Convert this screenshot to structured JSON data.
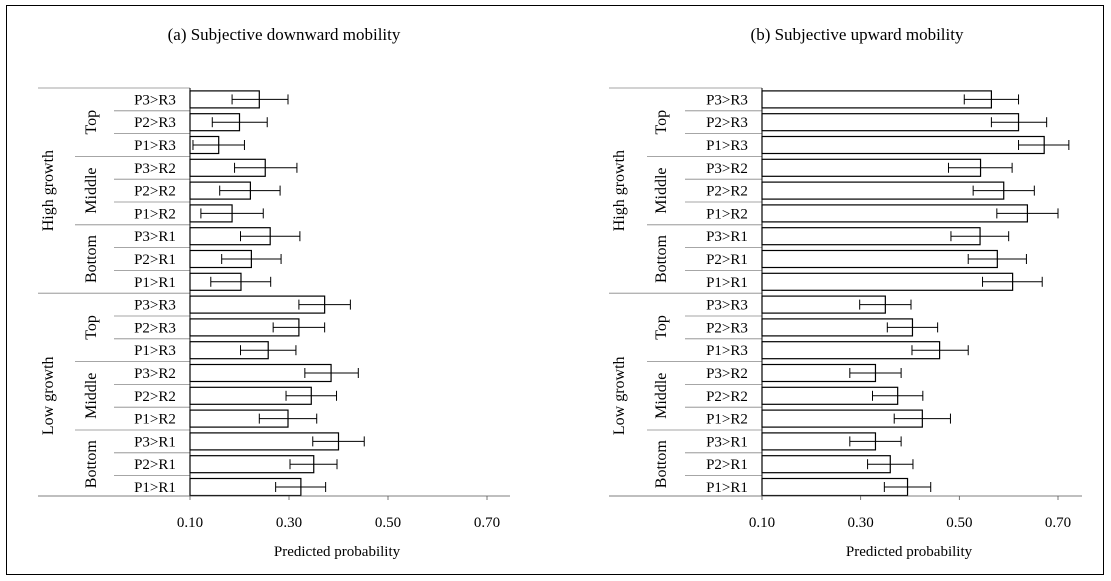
{
  "chart_data": [
    {
      "type": "bar",
      "orientation": "horizontal",
      "title": "(a) Subjective downward mobility",
      "xlabel": "Predicted probability",
      "xlim": [
        0.1,
        0.7
      ],
      "xticks": [
        "0.10",
        "0.30",
        "0.50",
        "0.70"
      ],
      "groups": [
        {
          "name": "High growth",
          "subgroups": [
            {
              "name": "Top",
              "bars": [
                {
                  "label": "P3>R3",
                  "value": 0.24,
                  "error_low": 0.185,
                  "error_high": 0.298
                },
                {
                  "label": "P2>R3",
                  "value": 0.2,
                  "error_low": 0.145,
                  "error_high": 0.256
                },
                {
                  "label": "P1>R3",
                  "value": 0.158,
                  "error_low": 0.106,
                  "error_high": 0.21
                }
              ]
            },
            {
              "name": "Middle",
              "bars": [
                {
                  "label": "P3>R2",
                  "value": 0.252,
                  "error_low": 0.19,
                  "error_high": 0.316
                },
                {
                  "label": "P2>R2",
                  "value": 0.222,
                  "error_low": 0.16,
                  "error_high": 0.282
                },
                {
                  "label": "P1>R2",
                  "value": 0.185,
                  "error_low": 0.122,
                  "error_high": 0.248
                }
              ]
            },
            {
              "name": "Bottom",
              "bars": [
                {
                  "label": "P3>R1",
                  "value": 0.262,
                  "error_low": 0.202,
                  "error_high": 0.322
                },
                {
                  "label": "P2>R1",
                  "value": 0.224,
                  "error_low": 0.164,
                  "error_high": 0.284
                },
                {
                  "label": "P1>R1",
                  "value": 0.203,
                  "error_low": 0.142,
                  "error_high": 0.263
                }
              ]
            }
          ]
        },
        {
          "name": "Low growth",
          "subgroups": [
            {
              "name": "Top",
              "bars": [
                {
                  "label": "P3>R3",
                  "value": 0.372,
                  "error_low": 0.32,
                  "error_high": 0.424
                },
                {
                  "label": "P2>R3",
                  "value": 0.32,
                  "error_low": 0.268,
                  "error_high": 0.372
                },
                {
                  "label": "P1>R3",
                  "value": 0.258,
                  "error_low": 0.202,
                  "error_high": 0.314
                }
              ]
            },
            {
              "name": "Middle",
              "bars": [
                {
                  "label": "P3>R2",
                  "value": 0.385,
                  "error_low": 0.332,
                  "error_high": 0.44
                },
                {
                  "label": "P2>R2",
                  "value": 0.345,
                  "error_low": 0.294,
                  "error_high": 0.396
                },
                {
                  "label": "P1>R2",
                  "value": 0.298,
                  "error_low": 0.24,
                  "error_high": 0.356
                }
              ]
            },
            {
              "name": "Bottom",
              "bars": [
                {
                  "label": "P3>R1",
                  "value": 0.4,
                  "error_low": 0.348,
                  "error_high": 0.452
                },
                {
                  "label": "P2>R1",
                  "value": 0.35,
                  "error_low": 0.302,
                  "error_high": 0.397
                },
                {
                  "label": "P1>R1",
                  "value": 0.324,
                  "error_low": 0.273,
                  "error_high": 0.374
                }
              ]
            }
          ]
        }
      ]
    },
    {
      "type": "bar",
      "orientation": "horizontal",
      "title": "(b) Subjective upward mobility",
      "xlabel": "Predicted probability",
      "xlim": [
        0.1,
        0.7
      ],
      "xticks": [
        "0.10",
        "0.30",
        "0.50",
        "0.70"
      ],
      "groups": [
        {
          "name": "High growth",
          "subgroups": [
            {
              "name": "Top",
              "bars": [
                {
                  "label": "P3>R3",
                  "value": 0.565,
                  "error_low": 0.51,
                  "error_high": 0.62
                },
                {
                  "label": "P2>R3",
                  "value": 0.62,
                  "error_low": 0.565,
                  "error_high": 0.677
                },
                {
                  "label": "P1>R3",
                  "value": 0.672,
                  "error_low": 0.62,
                  "error_high": 0.722
                }
              ]
            },
            {
              "name": "Middle",
              "bars": [
                {
                  "label": "P3>R2",
                  "value": 0.543,
                  "error_low": 0.478,
                  "error_high": 0.607
                },
                {
                  "label": "P2>R2",
                  "value": 0.59,
                  "error_low": 0.528,
                  "error_high": 0.652
                },
                {
                  "label": "P1>R2",
                  "value": 0.638,
                  "error_low": 0.576,
                  "error_high": 0.7
                }
              ]
            },
            {
              "name": "Bottom",
              "bars": [
                {
                  "label": "P3>R1",
                  "value": 0.542,
                  "error_low": 0.483,
                  "error_high": 0.6
                },
                {
                  "label": "P2>R1",
                  "value": 0.577,
                  "error_low": 0.518,
                  "error_high": 0.636
                },
                {
                  "label": "P1>R1",
                  "value": 0.608,
                  "error_low": 0.547,
                  "error_high": 0.668
                }
              ]
            }
          ]
        },
        {
          "name": "Low growth",
          "subgroups": [
            {
              "name": "Top",
              "bars": [
                {
                  "label": "P3>R3",
                  "value": 0.35,
                  "error_low": 0.298,
                  "error_high": 0.402
                },
                {
                  "label": "P2>R3",
                  "value": 0.405,
                  "error_low": 0.354,
                  "error_high": 0.456
                },
                {
                  "label": "P1>R3",
                  "value": 0.46,
                  "error_low": 0.404,
                  "error_high": 0.518
                }
              ]
            },
            {
              "name": "Middle",
              "bars": [
                {
                  "label": "P3>R2",
                  "value": 0.33,
                  "error_low": 0.278,
                  "error_high": 0.382
                },
                {
                  "label": "P2>R2",
                  "value": 0.375,
                  "error_low": 0.324,
                  "error_high": 0.426
                },
                {
                  "label": "P1>R2",
                  "value": 0.425,
                  "error_low": 0.368,
                  "error_high": 0.482
                }
              ]
            },
            {
              "name": "Bottom",
              "bars": [
                {
                  "label": "P3>R1",
                  "value": 0.33,
                  "error_low": 0.278,
                  "error_high": 0.382
                },
                {
                  "label": "P2>R1",
                  "value": 0.36,
                  "error_low": 0.314,
                  "error_high": 0.406
                },
                {
                  "label": "P1>R1",
                  "value": 0.395,
                  "error_low": 0.348,
                  "error_high": 0.442
                }
              ]
            }
          ]
        }
      ]
    }
  ]
}
